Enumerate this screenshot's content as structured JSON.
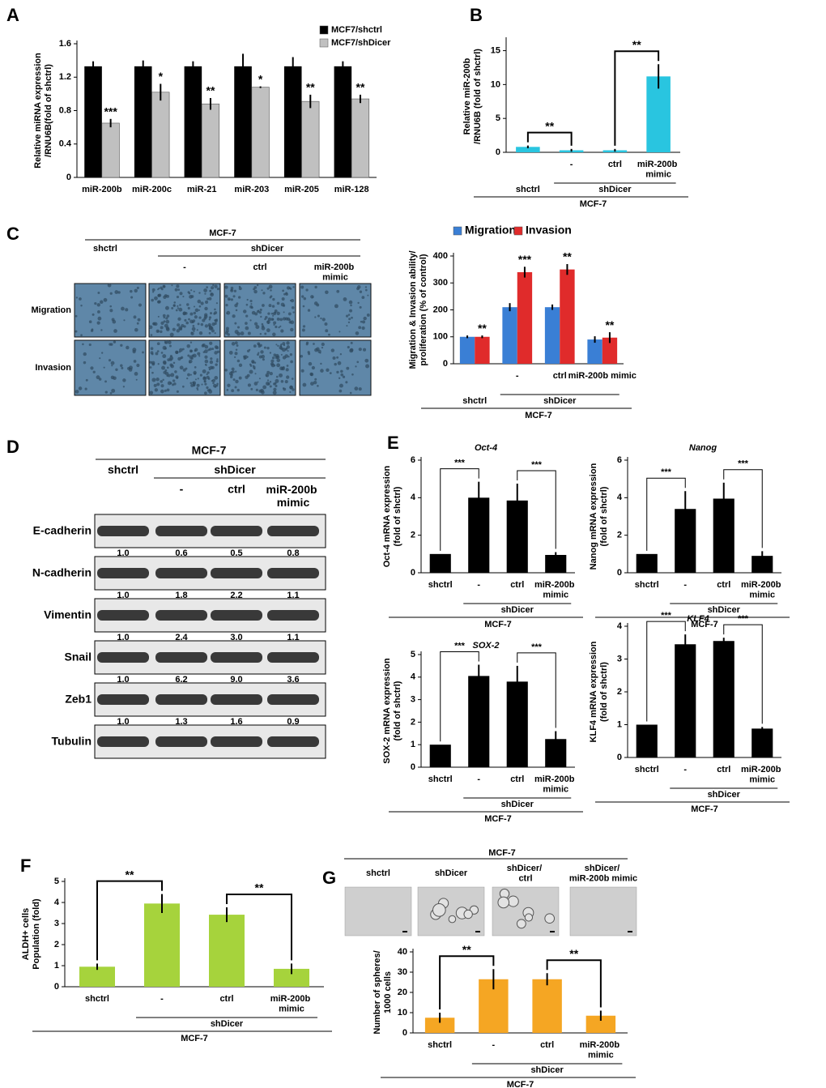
{
  "chart_data": [
    {
      "panel": "A",
      "type": "bar",
      "ylabel": [
        "Relative miRNA expression",
        "/RNU6B(fold of shctrl)"
      ],
      "categories": [
        "miR-200b",
        "miR-200c",
        "miR-21",
        "miR-203",
        "miR-205",
        "miR-128"
      ],
      "series": [
        {
          "name": "MCF7/shctrl",
          "color": "#000000",
          "values": [
            1.33,
            1.33,
            1.33,
            1.33,
            1.33,
            1.33
          ],
          "errors": [
            0.06,
            0.07,
            0.06,
            0.15,
            0.11,
            0.06
          ]
        },
        {
          "name": "MCF7/shDicer",
          "color": "#c0c0c0",
          "values": [
            0.65,
            1.02,
            0.88,
            1.08,
            0.91,
            0.94
          ],
          "errors": [
            0.05,
            0.1,
            0.07,
            0.01,
            0.08,
            0.05
          ]
        }
      ],
      "significance": [
        "***",
        "*",
        "**",
        "*",
        "**",
        "**"
      ],
      "legend": "upper right",
      "ylim": [
        0,
        1.6
      ],
      "yticks": [
        0,
        0.4,
        0.8,
        1.2,
        1.6
      ]
    },
    {
      "panel": "B",
      "type": "bar",
      "ylabel": [
        "Relative miR-200b",
        "/RNU6B (fold of shctrl)"
      ],
      "categories": [
        null,
        "-",
        "ctrl",
        "miR-200b mimic"
      ],
      "groups": [
        "shctrl",
        "shDicer"
      ],
      "cell_line": "MCF-7",
      "values": [
        0.8,
        0.3,
        0.3,
        11.2
      ],
      "errors": [
        0.2,
        0.2,
        0.2,
        1.8
      ],
      "color": "#29c5e0",
      "significance": [
        "**",
        "**"
      ],
      "ylim": [
        0,
        16.5
      ],
      "yticks": [
        0,
        5,
        10,
        15
      ]
    },
    {
      "panel": "C",
      "type": "bar",
      "ylabel": [
        "Migration & Invasion ability/",
        "proliferation (% of control)"
      ],
      "categories": [
        null,
        "-",
        "ctrl",
        "miR-200b mimic"
      ],
      "groups": [
        "shctrl",
        "shDicer"
      ],
      "cell_line": "MCF-7",
      "series": [
        {
          "name": "Migration",
          "color": "#3a7fd5",
          "values": [
            100,
            210,
            210,
            90
          ],
          "errors": [
            5,
            15,
            10,
            12
          ]
        },
        {
          "name": "Invasion",
          "color": "#e02b2b",
          "values": [
            100,
            340,
            350,
            97
          ],
          "errors": [
            5,
            20,
            20,
            20
          ]
        }
      ],
      "significance": [
        "**",
        "***",
        "**",
        "**"
      ],
      "legend": "top",
      "ylim": [
        0,
        400
      ],
      "yticks": [
        0,
        100,
        200,
        300,
        400
      ]
    },
    {
      "panel": "E",
      "type": "bar",
      "title": "Oct-4",
      "ylabel": [
        "Oct-4 mRNA expression",
        "(fold of shctrl)"
      ],
      "categories": [
        "shctrl",
        "-",
        "ctrl",
        "miR-200b mimic"
      ],
      "groups": [
        "shDicer"
      ],
      "cell_line": "MCF-7",
      "values": [
        1,
        4.0,
        3.85,
        0.95
      ],
      "errors": [
        null,
        0.85,
        0.9,
        0.15
      ],
      "color": "#000000",
      "significance": [
        "***",
        "***"
      ],
      "ylim": [
        0,
        6
      ],
      "yticks": [
        0,
        2,
        4,
        6
      ]
    },
    {
      "type": "bar",
      "title": "Nanog",
      "ylabel": [
        "Nanog mRNA expression",
        "(fold of shctrl)"
      ],
      "categories": [
        "shctrl",
        "-",
        "ctrl",
        "miR-200b mimic"
      ],
      "groups": [
        "shDicer"
      ],
      "cell_line": "MCF-7",
      "values": [
        1,
        3.4,
        3.95,
        0.9
      ],
      "errors": [
        null,
        0.95,
        0.85,
        0.25
      ],
      "color": "#000000",
      "significance": [
        "***",
        "***"
      ],
      "ylim": [
        0,
        6
      ],
      "yticks": [
        0,
        2,
        4,
        6
      ]
    },
    {
      "type": "bar",
      "title": "SOX-2",
      "ylabel": [
        "SOX-2 mRNA expression",
        "(fold of shctrl)"
      ],
      "categories": [
        "shctrl",
        "-",
        "ctrl",
        "miR-200b mimic"
      ],
      "groups": [
        "shDicer"
      ],
      "cell_line": "MCF-7",
      "values": [
        1,
        4.05,
        3.8,
        1.25
      ],
      "errors": [
        null,
        0.5,
        0.7,
        0.35
      ],
      "color": "#000000",
      "significance": [
        "***",
        "***"
      ],
      "ylim": [
        0,
        5
      ],
      "yticks": [
        0,
        1,
        2,
        3,
        4,
        5
      ]
    },
    {
      "type": "bar",
      "title": "KLF4",
      "ylabel": [
        "KLF4 mRNA expression",
        "(fold of shctrl)"
      ],
      "categories": [
        "shctrl",
        "-",
        "ctrl",
        "miR-200b mimic"
      ],
      "groups": [
        "shDicer"
      ],
      "cell_line": "MCF-7",
      "values": [
        1,
        3.45,
        3.55,
        0.88
      ],
      "errors": [
        null,
        0.3,
        0.1,
        0.05
      ],
      "color": "#000000",
      "significance": [
        "***",
        "***"
      ],
      "ylim": [
        0,
        4
      ],
      "yticks": [
        0,
        1,
        2,
        3,
        4
      ]
    },
    {
      "panel": "F",
      "type": "bar",
      "ylabel": [
        "ALDH+ cells",
        "Population (fold)"
      ],
      "categories": [
        "shctrl",
        "-",
        "ctrl",
        "miR-200b mimic"
      ],
      "groups": [
        "shDicer"
      ],
      "cell_line": "MCF-7",
      "values": [
        0.95,
        3.95,
        3.42,
        0.85
      ],
      "errors": [
        0.15,
        0.45,
        0.35,
        0.25
      ],
      "color": "#a6d33c",
      "significance": [
        "**",
        "**"
      ],
      "ylim": [
        0,
        5
      ],
      "yticks": [
        0,
        1,
        2,
        3,
        4,
        5
      ]
    },
    {
      "panel": "G",
      "type": "bar",
      "ylabel": [
        "Number of spheres/",
        "1000 cells"
      ],
      "categories": [
        "shctrl",
        "-",
        "ctrl",
        "miR-200b mimic"
      ],
      "groups": [
        "shDicer"
      ],
      "cell_line": "MCF-7",
      "values": [
        7.5,
        26.5,
        26.5,
        8.5
      ],
      "errors": [
        2.5,
        5,
        3,
        2.5
      ],
      "color": "#f5a623",
      "significance": [
        "**",
        "**"
      ],
      "ylim": [
        0,
        40
      ],
      "yticks": [
        0,
        10,
        20,
        30,
        40
      ]
    }
  ],
  "micrographs_c": {
    "cell_line": "MCF-7",
    "group": "shDicer",
    "columns": [
      "shctrl",
      "-",
      "ctrl",
      "miR-200b mimic"
    ],
    "rows": [
      "Migration",
      "Invasion"
    ]
  },
  "blot": {
    "panel": "D",
    "cell_line": "MCF-7",
    "group": "shDicer",
    "columns": [
      "shctrl",
      "-",
      "ctrl",
      "miR-200b mimic"
    ],
    "rows": [
      {
        "label": "E-cadherin",
        "quant": [
          "1.0",
          "0.6",
          "0.5",
          "0.8"
        ]
      },
      {
        "label": "N-cadherin",
        "quant": [
          "1.0",
          "1.8",
          "2.2",
          "1.1"
        ]
      },
      {
        "label": "Vimentin",
        "quant": [
          "1.0",
          "2.4",
          "3.0",
          "1.1"
        ]
      },
      {
        "label": "Snail",
        "quant": [
          "1.0",
          "6.2",
          "9.0",
          "3.6"
        ]
      },
      {
        "label": "Zeb1",
        "quant": [
          "1.0",
          "1.3",
          "1.6",
          "0.9"
        ]
      },
      {
        "label": "Tubulin"
      }
    ]
  },
  "micrographs_g": {
    "cell_line": "MCF-7",
    "columns": [
      "shctrl",
      "shDicer",
      "shDicer/ ctrl",
      "shDicer/ miR-200b mimic"
    ]
  }
}
